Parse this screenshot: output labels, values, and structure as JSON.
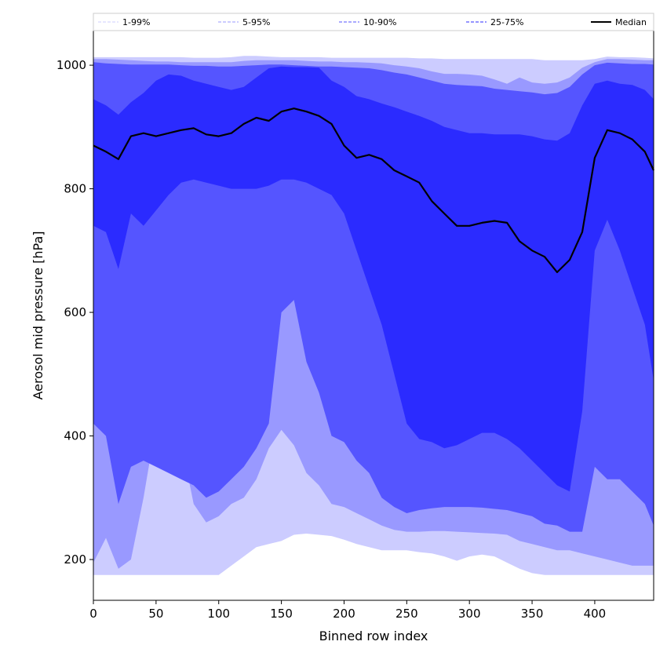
{
  "chart_data": {
    "type": "area",
    "xlabel": "Binned row index",
    "ylabel": "Aerosol mid pressure [hPa]",
    "xlim": [
      0,
      447
    ],
    "ylim": [
      134,
      1056
    ],
    "x_ticks": [
      "0",
      "50",
      "100",
      "150",
      "200",
      "250",
      "300",
      "350",
      "400"
    ],
    "y_ticks": [
      "200",
      "400",
      "600",
      "800",
      "1000"
    ],
    "legend_position": "top",
    "bands": [
      {
        "name": "1-99%",
        "color": "#ccccff",
        "low_key": "p1",
        "high_key": "p99"
      },
      {
        "name": "5-95%",
        "color": "#9999ff",
        "low_key": "p5",
        "high_key": "p95"
      },
      {
        "name": "10-90%",
        "color": "#5555ff",
        "low_key": "p10",
        "high_key": "p90"
      },
      {
        "name": "25-75%",
        "color": "#2b2bff",
        "low_key": "p25",
        "high_key": "p75"
      }
    ],
    "median": {
      "name": "Median",
      "color": "#000000"
    },
    "x": [
      0,
      10,
      20,
      30,
      40,
      50,
      60,
      70,
      80,
      90,
      100,
      110,
      120,
      130,
      140,
      150,
      160,
      170,
      180,
      190,
      200,
      210,
      220,
      230,
      240,
      250,
      260,
      270,
      280,
      290,
      300,
      310,
      320,
      330,
      340,
      350,
      360,
      370,
      380,
      390,
      400,
      410,
      420,
      430,
      440,
      447
    ],
    "p99": [
      1013,
      1013,
      1013,
      1013,
      1013,
      1013,
      1013,
      1013,
      1012,
      1012,
      1012,
      1013,
      1015,
      1015,
      1014,
      1013,
      1013,
      1013,
      1013,
      1012,
      1012,
      1012,
      1012,
      1012,
      1012,
      1012,
      1011,
      1011,
      1010,
      1010,
      1010,
      1010,
      1010,
      1010,
      1010,
      1010,
      1008,
      1008,
      1008,
      1008,
      1010,
      1014,
      1013,
      1013,
      1012,
      1011
    ],
    "p95": [
      1010,
      1010,
      1009,
      1008,
      1007,
      1006,
      1006,
      1005,
      1005,
      1005,
      1005,
      1005,
      1007,
      1008,
      1008,
      1008,
      1008,
      1007,
      1006,
      1006,
      1005,
      1005,
      1004,
      1003,
      1000,
      998,
      995,
      990,
      986,
      986,
      985,
      983,
      977,
      970,
      980,
      972,
      970,
      972,
      980,
      996,
      1005,
      1010,
      1010,
      1009,
      1008,
      1008
    ],
    "p90": [
      1005,
      1003,
      1002,
      1001,
      1001,
      1001,
      1001,
      1000,
      999,
      999,
      998,
      998,
      999,
      1000,
      1001,
      1001,
      1000,
      999,
      998,
      998,
      997,
      996,
      995,
      992,
      988,
      985,
      980,
      975,
      970,
      968,
      967,
      966,
      962,
      960,
      958,
      956,
      953,
      955,
      965,
      985,
      1000,
      1004,
      1003,
      1002,
      1002,
      1001
    ],
    "p75": [
      945,
      935,
      920,
      940,
      955,
      975,
      985,
      983,
      975,
      970,
      965,
      960,
      965,
      980,
      995,
      998,
      997,
      997,
      996,
      975,
      965,
      950,
      945,
      938,
      932,
      925,
      918,
      910,
      900,
      895,
      890,
      890,
      888,
      888,
      888,
      885,
      880,
      878,
      890,
      935,
      970,
      975,
      970,
      968,
      960,
      945
    ],
    "p50": [
      870,
      860,
      848,
      885,
      890,
      885,
      890,
      895,
      898,
      888,
      885,
      890,
      905,
      915,
      910,
      925,
      930,
      925,
      918,
      905,
      870,
      850,
      855,
      848,
      830,
      820,
      810,
      780,
      760,
      740,
      740,
      745,
      748,
      745,
      715,
      700,
      690,
      665,
      685,
      730,
      850,
      895,
      890,
      880,
      860,
      830
    ],
    "p25": [
      740,
      730,
      670,
      760,
      740,
      765,
      790,
      810,
      815,
      810,
      805,
      800,
      800,
      800,
      805,
      815,
      815,
      810,
      800,
      790,
      760,
      700,
      640,
      580,
      500,
      420,
      395,
      390,
      380,
      385,
      395,
      405,
      405,
      395,
      380,
      360,
      340,
      320,
      310,
      440,
      700,
      750,
      700,
      640,
      580,
      490
    ],
    "p10": [
      420,
      400,
      290,
      350,
      360,
      350,
      340,
      330,
      320,
      300,
      310,
      330,
      350,
      380,
      420,
      600,
      620,
      520,
      470,
      400,
      390,
      360,
      340,
      300,
      285,
      275,
      280,
      283,
      285,
      285,
      285,
      284,
      282,
      280,
      275,
      270,
      258,
      255,
      245,
      245,
      350,
      330,
      330,
      310,
      290,
      255
    ],
    "p5": [
      195,
      235,
      185,
      200,
      300,
      420,
      470,
      390,
      290,
      260,
      270,
      290,
      300,
      330,
      380,
      410,
      385,
      340,
      320,
      290,
      285,
      275,
      265,
      255,
      248,
      245,
      245,
      246,
      246,
      245,
      244,
      243,
      242,
      240,
      230,
      225,
      220,
      215,
      215,
      210,
      205,
      200,
      195,
      190,
      190,
      190
    ],
    "p1": [
      175,
      175,
      175,
      175,
      175,
      175,
      175,
      175,
      175,
      175,
      175,
      190,
      205,
      220,
      225,
      230,
      240,
      242,
      240,
      238,
      232,
      225,
      220,
      215,
      215,
      215,
      212,
      210,
      205,
      198,
      205,
      208,
      205,
      195,
      185,
      178,
      175,
      175,
      175,
      175,
      175,
      175,
      175,
      175,
      175,
      175
    ]
  }
}
